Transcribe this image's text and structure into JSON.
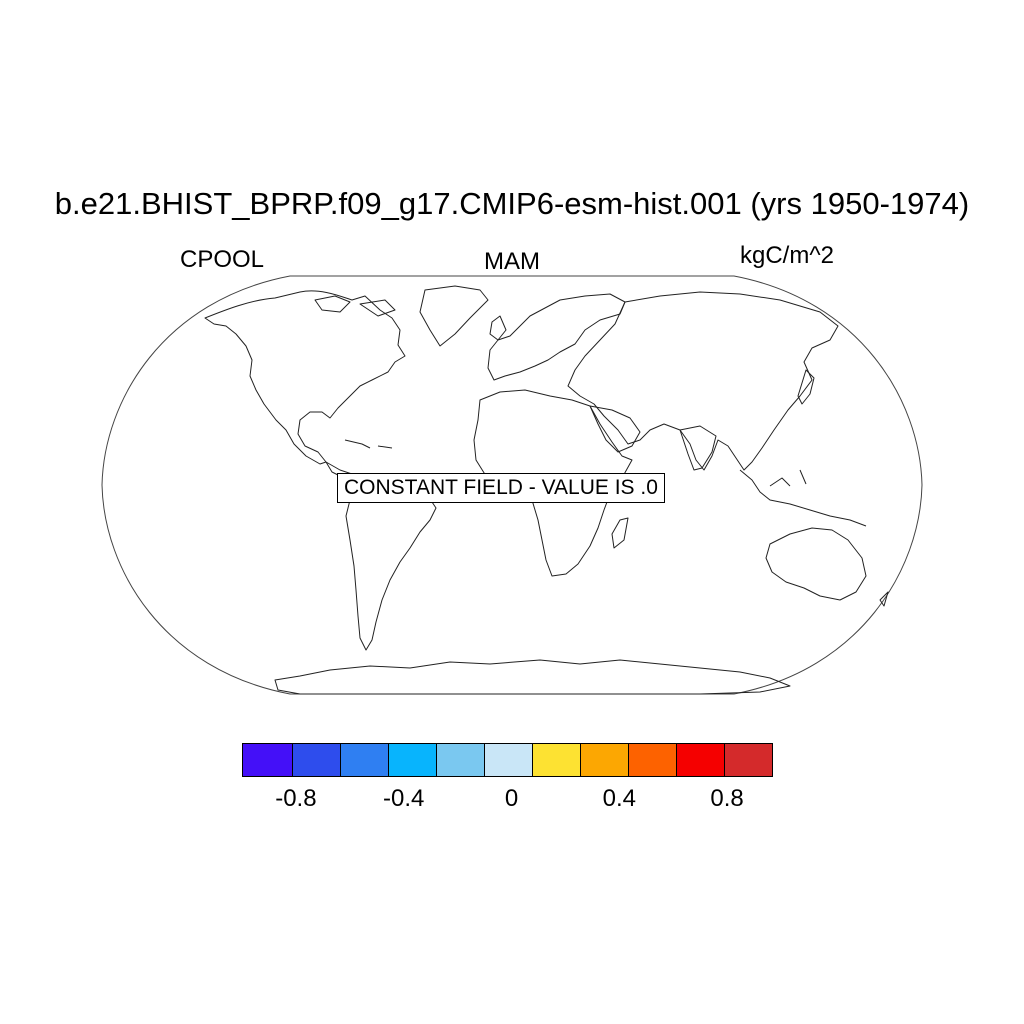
{
  "title": "b.e21.BHIST_BPRP.f09_g17.CMIP6-esm-hist.001 (yrs 1950-1974)",
  "left_label": "CPOOL",
  "center_label": "MAM",
  "right_label": "kgC/m^2",
  "notice": "CONSTANT FIELD - VALUE IS .0",
  "colorbar": {
    "colors": [
      "#4410f8",
      "#2e4ded",
      "#2f7ff2",
      "#08b4fd",
      "#7ac8f0",
      "#c9e6f7",
      "#fde232",
      "#fca702",
      "#fd6200",
      "#f50000",
      "#d42a2b"
    ],
    "tick_labels": [
      "-0.8",
      "-0.4",
      "0",
      "0.4",
      "0.8"
    ],
    "tick_values": [
      -0.8,
      -0.4,
      0,
      0.4,
      0.8
    ],
    "range": [
      -1.0,
      1.0
    ]
  }
}
